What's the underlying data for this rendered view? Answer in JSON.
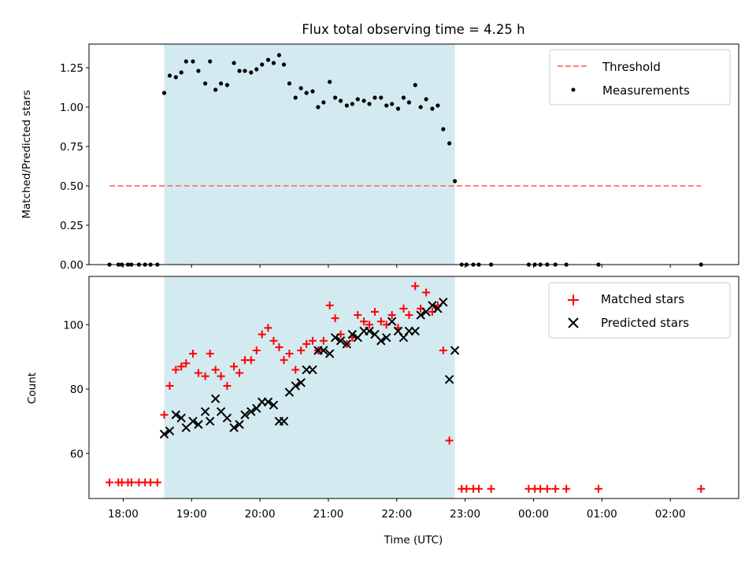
{
  "chart_data": [
    {
      "type": "scatter",
      "title": "Flux total observing time = 4.25 h",
      "xlabel": "",
      "ylabel": "Matched/Predicted stars",
      "x_unit": "hours (UTC, continuing past midnight)",
      "xlim": [
        17.5,
        27.0
      ],
      "ylim": [
        0.0,
        1.4
      ],
      "yticks": [
        "0.00",
        "0.25",
        "0.50",
        "0.75",
        "1.00",
        "1.25"
      ],
      "ytick_values": [
        0,
        0.25,
        0.5,
        0.75,
        1.0,
        1.25
      ],
      "shaded_interval": [
        18.6,
        22.85
      ],
      "legend_position": "upper right",
      "series": [
        {
          "name": "Threshold",
          "kind": "dashed-line",
          "color": "#ff7f7f",
          "points": [
            [
              17.8,
              0.5
            ],
            [
              26.45,
              0.5
            ]
          ]
        },
        {
          "name": "Measurements",
          "kind": "dots",
          "color": "#000000",
          "points": [
            [
              17.8,
              0.0
            ],
            [
              17.93,
              0.0
            ],
            [
              17.98,
              0.0
            ],
            [
              18.07,
              0.0
            ],
            [
              18.12,
              0.0
            ],
            [
              18.23,
              0.0
            ],
            [
              18.32,
              0.0
            ],
            [
              18.4,
              0.0
            ],
            [
              18.5,
              0.0
            ],
            [
              18.6,
              1.09
            ],
            [
              18.68,
              1.2
            ],
            [
              18.77,
              1.19
            ],
            [
              18.85,
              1.22
            ],
            [
              18.92,
              1.29
            ],
            [
              19.02,
              1.29
            ],
            [
              19.1,
              1.23
            ],
            [
              19.2,
              1.15
            ],
            [
              19.27,
              1.29
            ],
            [
              19.35,
              1.11
            ],
            [
              19.43,
              1.15
            ],
            [
              19.52,
              1.14
            ],
            [
              19.62,
              1.28
            ],
            [
              19.7,
              1.23
            ],
            [
              19.78,
              1.23
            ],
            [
              19.87,
              1.22
            ],
            [
              19.95,
              1.24
            ],
            [
              20.03,
              1.27
            ],
            [
              20.12,
              1.3
            ],
            [
              20.2,
              1.28
            ],
            [
              20.28,
              1.33
            ],
            [
              20.35,
              1.27
            ],
            [
              20.43,
              1.15
            ],
            [
              20.52,
              1.06
            ],
            [
              20.6,
              1.12
            ],
            [
              20.68,
              1.09
            ],
            [
              20.77,
              1.1
            ],
            [
              20.85,
              1.0
            ],
            [
              20.93,
              1.03
            ],
            [
              21.02,
              1.16
            ],
            [
              21.1,
              1.06
            ],
            [
              21.18,
              1.04
            ],
            [
              21.27,
              1.01
            ],
            [
              21.35,
              1.02
            ],
            [
              21.43,
              1.05
            ],
            [
              21.52,
              1.04
            ],
            [
              21.6,
              1.02
            ],
            [
              21.68,
              1.06
            ],
            [
              21.77,
              1.06
            ],
            [
              21.85,
              1.01
            ],
            [
              21.93,
              1.02
            ],
            [
              22.02,
              0.99
            ],
            [
              22.1,
              1.06
            ],
            [
              22.18,
              1.03
            ],
            [
              22.27,
              1.14
            ],
            [
              22.35,
              1.0
            ],
            [
              22.43,
              1.05
            ],
            [
              22.52,
              0.99
            ],
            [
              22.6,
              1.01
            ],
            [
              22.68,
              0.86
            ],
            [
              22.77,
              0.77
            ],
            [
              22.85,
              0.53
            ],
            [
              22.95,
              0.0
            ],
            [
              23.02,
              0.0
            ],
            [
              23.12,
              0.0
            ],
            [
              23.2,
              0.0
            ],
            [
              23.38,
              0.0
            ],
            [
              23.93,
              0.0
            ],
            [
              24.02,
              0.0
            ],
            [
              24.1,
              0.0
            ],
            [
              24.2,
              0.0
            ],
            [
              24.32,
              0.0
            ],
            [
              24.48,
              0.0
            ],
            [
              24.95,
              0.0
            ],
            [
              26.45,
              0.0
            ]
          ]
        }
      ]
    },
    {
      "type": "scatter",
      "title": "",
      "xlabel": "Time (UTC)",
      "ylabel": "Count",
      "x_unit": "hours (UTC, continuing past midnight)",
      "xlim": [
        17.5,
        27.0
      ],
      "ylim": [
        46,
        115
      ],
      "yticks": [
        "60",
        "80",
        "100"
      ],
      "ytick_values": [
        60,
        80,
        100
      ],
      "xticks": [
        "18:00",
        "19:00",
        "20:00",
        "21:00",
        "22:00",
        "23:00",
        "00:00",
        "01:00",
        "02:00"
      ],
      "xtick_values": [
        18,
        19,
        20,
        21,
        22,
        23,
        24,
        25,
        26
      ],
      "shaded_interval": [
        18.6,
        22.85
      ],
      "legend_position": "upper right",
      "series": [
        {
          "name": "Matched stars",
          "kind": "plus",
          "color": "#ff0000",
          "points": [
            [
              17.8,
              51
            ],
            [
              17.93,
              51
            ],
            [
              17.98,
              51
            ],
            [
              18.07,
              51
            ],
            [
              18.12,
              51
            ],
            [
              18.23,
              51
            ],
            [
              18.32,
              51
            ],
            [
              18.4,
              51
            ],
            [
              18.5,
              51
            ],
            [
              18.6,
              72
            ],
            [
              18.68,
              81
            ],
            [
              18.77,
              86
            ],
            [
              18.85,
              87
            ],
            [
              18.92,
              88
            ],
            [
              19.02,
              91
            ],
            [
              19.1,
              85
            ],
            [
              19.2,
              84
            ],
            [
              19.27,
              91
            ],
            [
              19.35,
              86
            ],
            [
              19.43,
              84
            ],
            [
              19.52,
              81
            ],
            [
              19.62,
              87
            ],
            [
              19.7,
              85
            ],
            [
              19.78,
              89
            ],
            [
              19.87,
              89
            ],
            [
              19.95,
              92
            ],
            [
              20.03,
              97
            ],
            [
              20.12,
              99
            ],
            [
              20.2,
              95
            ],
            [
              20.28,
              93
            ],
            [
              20.35,
              89
            ],
            [
              20.43,
              91
            ],
            [
              20.52,
              86
            ],
            [
              20.6,
              92
            ],
            [
              20.68,
              94
            ],
            [
              20.77,
              95
            ],
            [
              20.85,
              92
            ],
            [
              20.93,
              95
            ],
            [
              21.02,
              106
            ],
            [
              21.1,
              102
            ],
            [
              21.18,
              97
            ],
            [
              21.27,
              94
            ],
            [
              21.35,
              96
            ],
            [
              21.43,
              103
            ],
            [
              21.52,
              101
            ],
            [
              21.6,
              100
            ],
            [
              21.68,
              104
            ],
            [
              21.77,
              101
            ],
            [
              21.85,
              100
            ],
            [
              21.93,
              103
            ],
            [
              22.02,
              99
            ],
            [
              22.1,
              105
            ],
            [
              22.18,
              103
            ],
            [
              22.27,
              112
            ],
            [
              22.35,
              105
            ],
            [
              22.43,
              110
            ],
            [
              22.52,
              104
            ],
            [
              22.6,
              106
            ],
            [
              22.68,
              92
            ],
            [
              22.77,
              64
            ],
            [
              22.95,
              49
            ],
            [
              23.02,
              49
            ],
            [
              23.12,
              49
            ],
            [
              23.2,
              49
            ],
            [
              23.38,
              49
            ],
            [
              23.93,
              49
            ],
            [
              24.02,
              49
            ],
            [
              24.1,
              49
            ],
            [
              24.2,
              49
            ],
            [
              24.32,
              49
            ],
            [
              24.48,
              49
            ],
            [
              24.95,
              49
            ],
            [
              26.45,
              49
            ]
          ]
        },
        {
          "name": "Predicted stars",
          "kind": "x",
          "color": "#000000",
          "points": [
            [
              18.6,
              66
            ],
            [
              18.68,
              67
            ],
            [
              18.77,
              72
            ],
            [
              18.85,
              71
            ],
            [
              18.92,
              68
            ],
            [
              19.02,
              70
            ],
            [
              19.1,
              69
            ],
            [
              19.2,
              73
            ],
            [
              19.27,
              70
            ],
            [
              19.35,
              77
            ],
            [
              19.43,
              73
            ],
            [
              19.52,
              71
            ],
            [
              19.62,
              68
            ],
            [
              19.7,
              69
            ],
            [
              19.78,
              72
            ],
            [
              19.87,
              73
            ],
            [
              19.95,
              74
            ],
            [
              20.03,
              76
            ],
            [
              20.12,
              76
            ],
            [
              20.2,
              75
            ],
            [
              20.28,
              70
            ],
            [
              20.35,
              70
            ],
            [
              20.43,
              79
            ],
            [
              20.52,
              81
            ],
            [
              20.6,
              82
            ],
            [
              20.68,
              86
            ],
            [
              20.77,
              86
            ],
            [
              20.85,
              92
            ],
            [
              20.93,
              92
            ],
            [
              21.02,
              91
            ],
            [
              21.1,
              96
            ],
            [
              21.18,
              95
            ],
            [
              21.27,
              94
            ],
            [
              21.35,
              97
            ],
            [
              21.43,
              96
            ],
            [
              21.52,
              98
            ],
            [
              21.6,
              98
            ],
            [
              21.68,
              97
            ],
            [
              21.77,
              95
            ],
            [
              21.85,
              96
            ],
            [
              21.93,
              101
            ],
            [
              22.02,
              98
            ],
            [
              22.1,
              96
            ],
            [
              22.18,
              98
            ],
            [
              22.27,
              98
            ],
            [
              22.35,
              103
            ],
            [
              22.43,
              104
            ],
            [
              22.52,
              106
            ],
            [
              22.6,
              105
            ],
            [
              22.68,
              107
            ],
            [
              22.77,
              83
            ],
            [
              22.85,
              92
            ]
          ]
        }
      ]
    }
  ],
  "colors": {
    "shade": "#d3eaf0",
    "threshold": "#ff7f7f",
    "matched": "#ff0000",
    "predicted": "#000000"
  }
}
